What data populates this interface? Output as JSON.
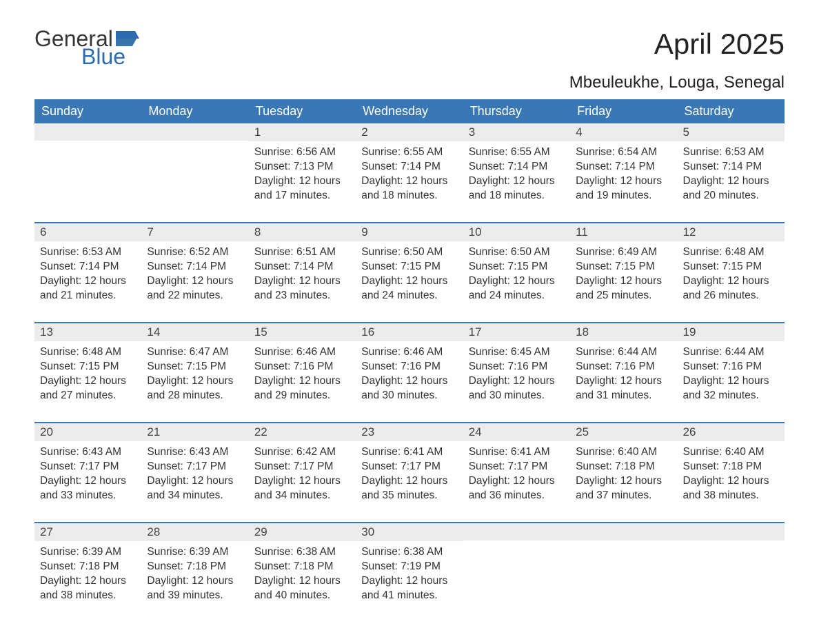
{
  "logo": {
    "text_general": "General",
    "text_blue": "Blue",
    "flag_color": "#2b6cb0"
  },
  "title": "April 2025",
  "location": "Mbeuleukhe, Louga, Senegal",
  "styling": {
    "header_bg": "#3a78b5",
    "header_text_color": "#ffffff",
    "daynum_bg": "#ececec",
    "week_border_color": "#3a78b5",
    "body_text_color": "#333333",
    "title_fontsize": 42,
    "location_fontsize": 24,
    "header_fontsize": 18,
    "daynum_fontsize": 17,
    "body_fontsize": 15.5,
    "page_bg": "#ffffff"
  },
  "day_headers": [
    "Sunday",
    "Monday",
    "Tuesday",
    "Wednesday",
    "Thursday",
    "Friday",
    "Saturday"
  ],
  "weeks": [
    [
      {
        "day": "",
        "sunrise": "",
        "sunset": "",
        "daylight": ""
      },
      {
        "day": "",
        "sunrise": "",
        "sunset": "",
        "daylight": ""
      },
      {
        "day": "1",
        "sunrise": "Sunrise: 6:56 AM",
        "sunset": "Sunset: 7:13 PM",
        "daylight": "Daylight: 12 hours and 17 minutes."
      },
      {
        "day": "2",
        "sunrise": "Sunrise: 6:55 AM",
        "sunset": "Sunset: 7:14 PM",
        "daylight": "Daylight: 12 hours and 18 minutes."
      },
      {
        "day": "3",
        "sunrise": "Sunrise: 6:55 AM",
        "sunset": "Sunset: 7:14 PM",
        "daylight": "Daylight: 12 hours and 18 minutes."
      },
      {
        "day": "4",
        "sunrise": "Sunrise: 6:54 AM",
        "sunset": "Sunset: 7:14 PM",
        "daylight": "Daylight: 12 hours and 19 minutes."
      },
      {
        "day": "5",
        "sunrise": "Sunrise: 6:53 AM",
        "sunset": "Sunset: 7:14 PM",
        "daylight": "Daylight: 12 hours and 20 minutes."
      }
    ],
    [
      {
        "day": "6",
        "sunrise": "Sunrise: 6:53 AM",
        "sunset": "Sunset: 7:14 PM",
        "daylight": "Daylight: 12 hours and 21 minutes."
      },
      {
        "day": "7",
        "sunrise": "Sunrise: 6:52 AM",
        "sunset": "Sunset: 7:14 PM",
        "daylight": "Daylight: 12 hours and 22 minutes."
      },
      {
        "day": "8",
        "sunrise": "Sunrise: 6:51 AM",
        "sunset": "Sunset: 7:14 PM",
        "daylight": "Daylight: 12 hours and 23 minutes."
      },
      {
        "day": "9",
        "sunrise": "Sunrise: 6:50 AM",
        "sunset": "Sunset: 7:15 PM",
        "daylight": "Daylight: 12 hours and 24 minutes."
      },
      {
        "day": "10",
        "sunrise": "Sunrise: 6:50 AM",
        "sunset": "Sunset: 7:15 PM",
        "daylight": "Daylight: 12 hours and 24 minutes."
      },
      {
        "day": "11",
        "sunrise": "Sunrise: 6:49 AM",
        "sunset": "Sunset: 7:15 PM",
        "daylight": "Daylight: 12 hours and 25 minutes."
      },
      {
        "day": "12",
        "sunrise": "Sunrise: 6:48 AM",
        "sunset": "Sunset: 7:15 PM",
        "daylight": "Daylight: 12 hours and 26 minutes."
      }
    ],
    [
      {
        "day": "13",
        "sunrise": "Sunrise: 6:48 AM",
        "sunset": "Sunset: 7:15 PM",
        "daylight": "Daylight: 12 hours and 27 minutes."
      },
      {
        "day": "14",
        "sunrise": "Sunrise: 6:47 AM",
        "sunset": "Sunset: 7:15 PM",
        "daylight": "Daylight: 12 hours and 28 minutes."
      },
      {
        "day": "15",
        "sunrise": "Sunrise: 6:46 AM",
        "sunset": "Sunset: 7:16 PM",
        "daylight": "Daylight: 12 hours and 29 minutes."
      },
      {
        "day": "16",
        "sunrise": "Sunrise: 6:46 AM",
        "sunset": "Sunset: 7:16 PM",
        "daylight": "Daylight: 12 hours and 30 minutes."
      },
      {
        "day": "17",
        "sunrise": "Sunrise: 6:45 AM",
        "sunset": "Sunset: 7:16 PM",
        "daylight": "Daylight: 12 hours and 30 minutes."
      },
      {
        "day": "18",
        "sunrise": "Sunrise: 6:44 AM",
        "sunset": "Sunset: 7:16 PM",
        "daylight": "Daylight: 12 hours and 31 minutes."
      },
      {
        "day": "19",
        "sunrise": "Sunrise: 6:44 AM",
        "sunset": "Sunset: 7:16 PM",
        "daylight": "Daylight: 12 hours and 32 minutes."
      }
    ],
    [
      {
        "day": "20",
        "sunrise": "Sunrise: 6:43 AM",
        "sunset": "Sunset: 7:17 PM",
        "daylight": "Daylight: 12 hours and 33 minutes."
      },
      {
        "day": "21",
        "sunrise": "Sunrise: 6:43 AM",
        "sunset": "Sunset: 7:17 PM",
        "daylight": "Daylight: 12 hours and 34 minutes."
      },
      {
        "day": "22",
        "sunrise": "Sunrise: 6:42 AM",
        "sunset": "Sunset: 7:17 PM",
        "daylight": "Daylight: 12 hours and 34 minutes."
      },
      {
        "day": "23",
        "sunrise": "Sunrise: 6:41 AM",
        "sunset": "Sunset: 7:17 PM",
        "daylight": "Daylight: 12 hours and 35 minutes."
      },
      {
        "day": "24",
        "sunrise": "Sunrise: 6:41 AM",
        "sunset": "Sunset: 7:17 PM",
        "daylight": "Daylight: 12 hours and 36 minutes."
      },
      {
        "day": "25",
        "sunrise": "Sunrise: 6:40 AM",
        "sunset": "Sunset: 7:18 PM",
        "daylight": "Daylight: 12 hours and 37 minutes."
      },
      {
        "day": "26",
        "sunrise": "Sunrise: 6:40 AM",
        "sunset": "Sunset: 7:18 PM",
        "daylight": "Daylight: 12 hours and 38 minutes."
      }
    ],
    [
      {
        "day": "27",
        "sunrise": "Sunrise: 6:39 AM",
        "sunset": "Sunset: 7:18 PM",
        "daylight": "Daylight: 12 hours and 38 minutes."
      },
      {
        "day": "28",
        "sunrise": "Sunrise: 6:39 AM",
        "sunset": "Sunset: 7:18 PM",
        "daylight": "Daylight: 12 hours and 39 minutes."
      },
      {
        "day": "29",
        "sunrise": "Sunrise: 6:38 AM",
        "sunset": "Sunset: 7:18 PM",
        "daylight": "Daylight: 12 hours and 40 minutes."
      },
      {
        "day": "30",
        "sunrise": "Sunrise: 6:38 AM",
        "sunset": "Sunset: 7:19 PM",
        "daylight": "Daylight: 12 hours and 41 minutes."
      },
      {
        "day": "",
        "sunrise": "",
        "sunset": "",
        "daylight": ""
      },
      {
        "day": "",
        "sunrise": "",
        "sunset": "",
        "daylight": ""
      },
      {
        "day": "",
        "sunrise": "",
        "sunset": "",
        "daylight": ""
      }
    ]
  ]
}
